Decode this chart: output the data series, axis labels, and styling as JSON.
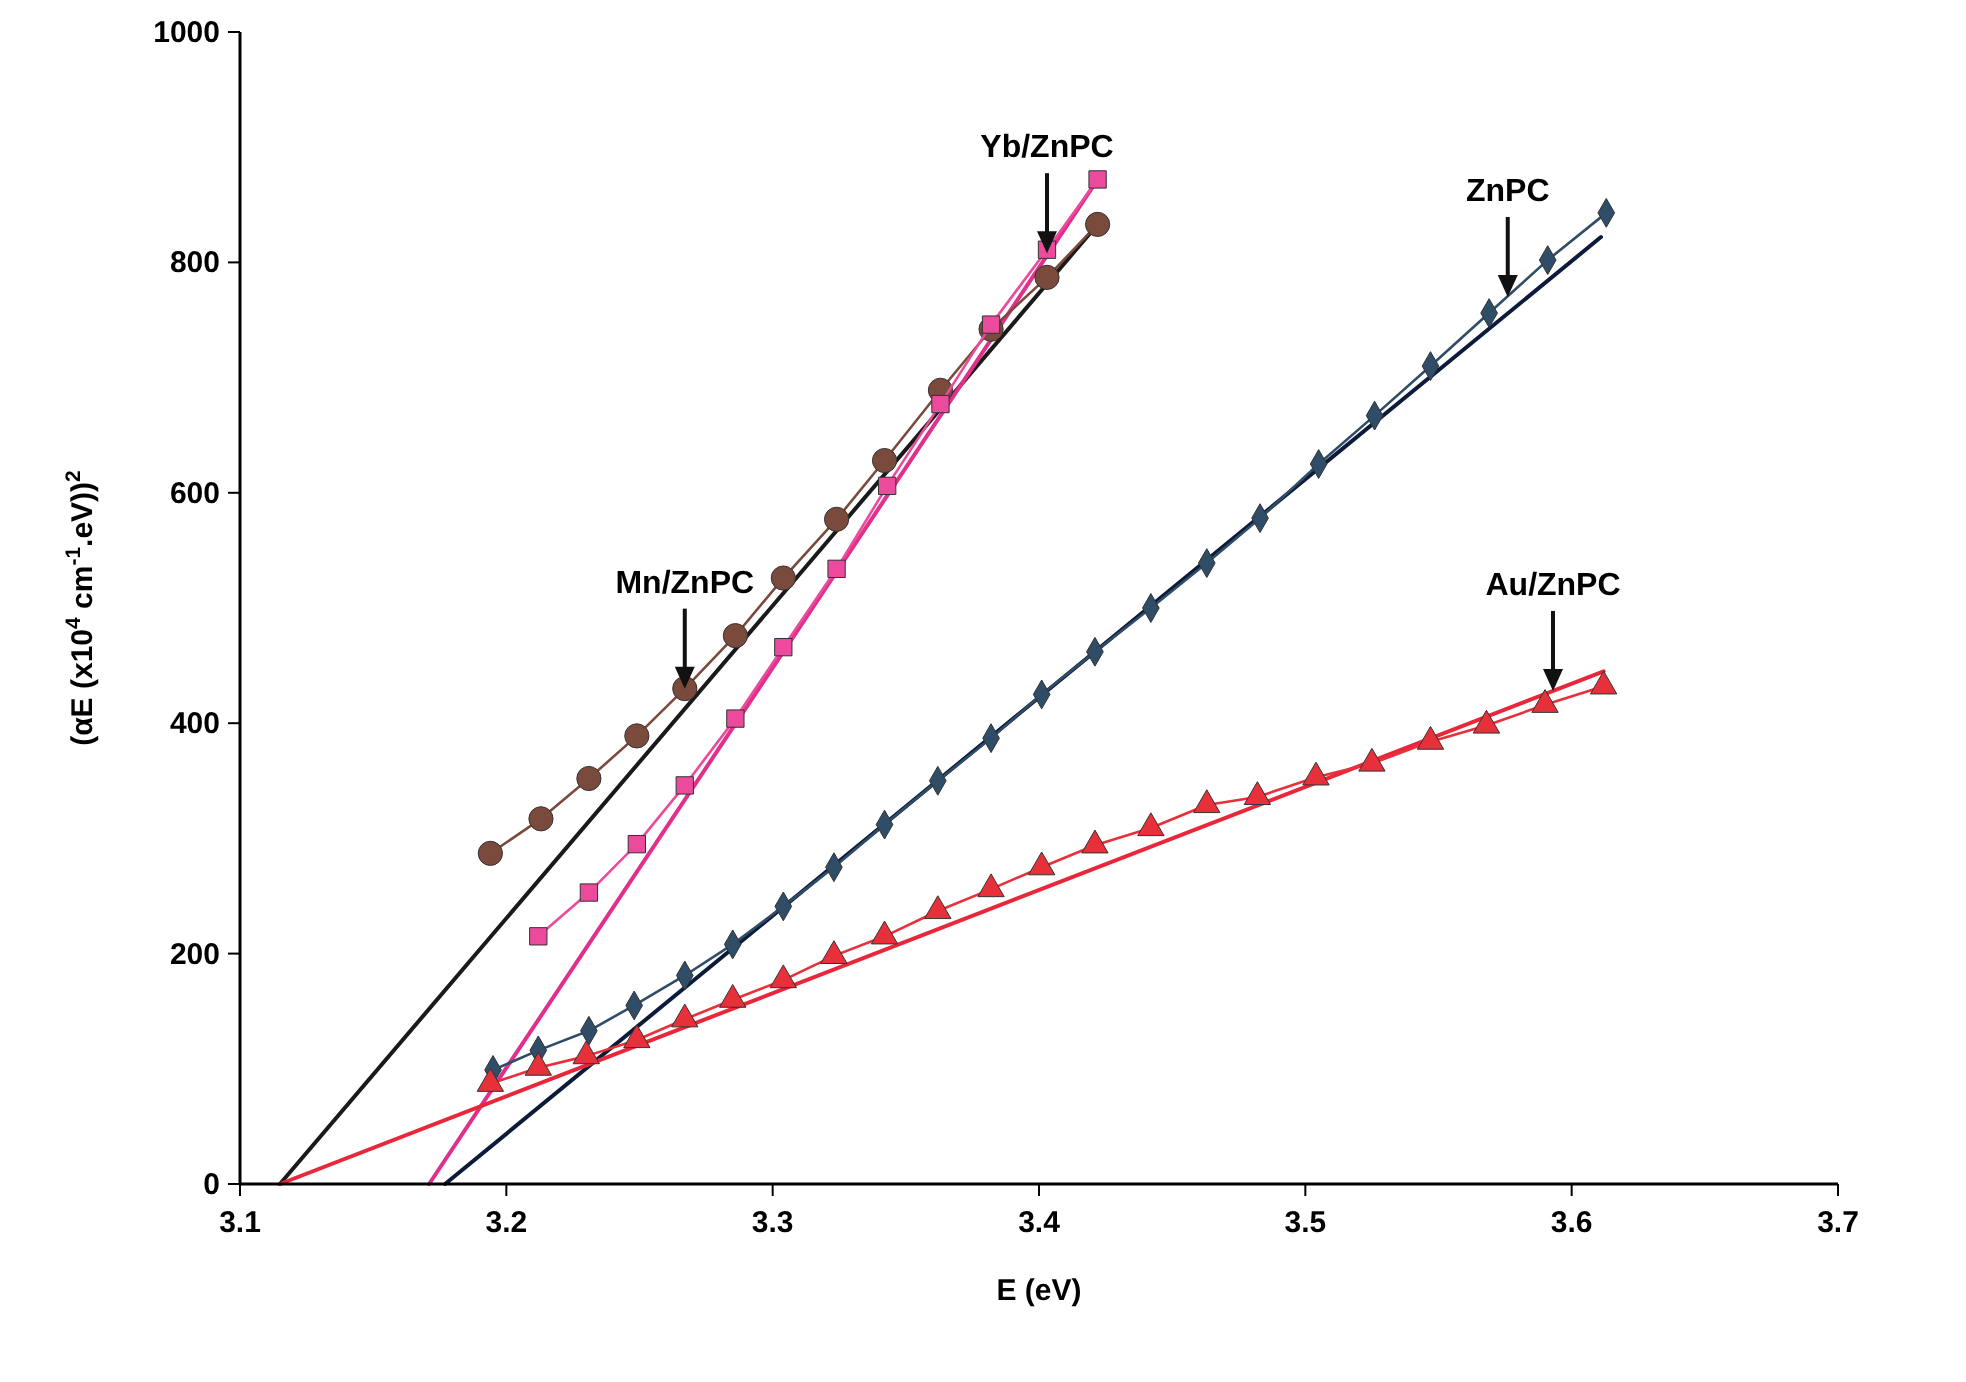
{
  "chart_data": {
    "type": "line",
    "xlabel": "E (eV)",
    "ylabel": "(αE (x10$^{4}$ cm$^{-1}$.eV))$^{2}$",
    "xlim": [
      3.1,
      3.7
    ],
    "xticks": [
      3.1,
      3.2,
      3.3,
      3.4,
      3.5,
      3.6,
      3.7
    ],
    "ylim": [
      0,
      1000
    ],
    "yticks": [
      0,
      200,
      400,
      600,
      800,
      1000
    ],
    "grid": false,
    "series": [
      {
        "color": "#1a1a1a",
        "marker": "none",
        "x": [
          3.115,
          3.422
        ],
        "values": [
          0,
          833
        ]
      },
      {
        "color": "#e0308c",
        "marker": "none",
        "x": [
          3.171,
          3.42
        ],
        "values": [
          0,
          865
        ]
      },
      {
        "color": "#0d1b3a",
        "marker": "none",
        "x": [
          3.177,
          3.611
        ],
        "values": [
          0,
          822
        ]
      },
      {
        "color": "#e8283a",
        "marker": "none",
        "x": [
          3.115,
          3.612
        ],
        "values": [
          0,
          445
        ]
      },
      {
        "color": "#7a4a3c",
        "marker": "circle",
        "x": [
          3.194,
          3.213,
          3.231,
          3.249,
          3.267,
          3.286,
          3.304,
          3.324,
          3.342,
          3.363,
          3.382,
          3.403,
          3.422
        ],
        "values": [
          287,
          317,
          352,
          389,
          430,
          476,
          526,
          577,
          628,
          689,
          742,
          787,
          833
        ]
      },
      {
        "color": "#ec4a9c",
        "marker": "square",
        "x": [
          3.212,
          3.231,
          3.249,
          3.267,
          3.286,
          3.304,
          3.324,
          3.343,
          3.363,
          3.382,
          3.403,
          3.422
        ],
        "values": [
          215,
          253,
          295,
          346,
          404,
          466,
          534,
          606,
          677,
          746,
          811,
          872
        ]
      },
      {
        "color": "#2f4d66",
        "marker": "diamond",
        "x": [
          3.195,
          3.212,
          3.231,
          3.248,
          3.267,
          3.285,
          3.304,
          3.323,
          3.342,
          3.362,
          3.382,
          3.401,
          3.421,
          3.442,
          3.463,
          3.483,
          3.505,
          3.526,
          3.547,
          3.569,
          3.591,
          3.613
        ],
        "values": [
          99,
          116,
          133,
          155,
          181,
          208,
          241,
          275,
          312,
          350,
          387,
          425,
          462,
          500,
          539,
          578,
          625,
          667,
          710,
          756,
          802,
          843
        ]
      },
      {
        "color": "#e8303a",
        "marker": "triangle",
        "x": [
          3.194,
          3.212,
          3.23,
          3.249,
          3.267,
          3.285,
          3.304,
          3.323,
          3.342,
          3.362,
          3.382,
          3.401,
          3.421,
          3.442,
          3.463,
          3.482,
          3.504,
          3.525,
          3.547,
          3.568,
          3.59,
          3.612
        ],
        "values": [
          87,
          101,
          111,
          125,
          143,
          160,
          177,
          198,
          215,
          237,
          256,
          275,
          294,
          309,
          329,
          336,
          353,
          365,
          384,
          398,
          416,
          432
        ]
      }
    ],
    "annotations": [
      {
        "text": "Mn/ZnPC",
        "x": 3.267,
        "y": 430
      },
      {
        "text": "Yb/ZnPC",
        "x": 3.403,
        "y": 808
      },
      {
        "text": "ZnPC",
        "x": 3.576,
        "y": 770
      },
      {
        "text": "Au/ZnPC",
        "x": 3.593,
        "y": 428
      }
    ]
  }
}
